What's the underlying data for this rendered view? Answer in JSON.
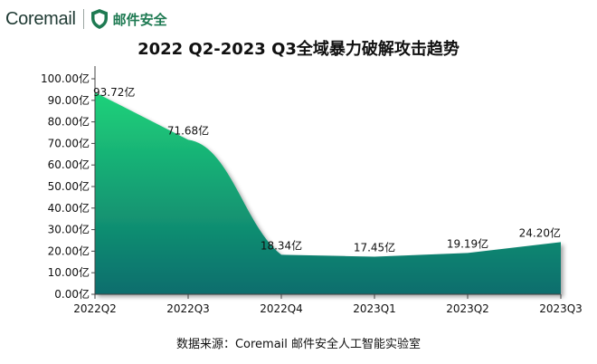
{
  "logo": {
    "brand": "Coremail",
    "product": "邮件安全",
    "icon": "shield-icon"
  },
  "chart_data": {
    "type": "area",
    "title": "2022 Q2-2023 Q3全域暴力破解攻击趋势",
    "categories": [
      "2022Q2",
      "2022Q3",
      "2022Q4",
      "2023Q1",
      "2023Q2",
      "2023Q3"
    ],
    "series": [
      {
        "values": [
          93.72,
          71.68,
          18.34,
          17.45,
          19.19,
          24.2
        ]
      }
    ],
    "data_labels": [
      "93.72亿",
      "71.68亿",
      "18.34亿",
      "17.45亿",
      "19.19亿",
      "24.20亿"
    ],
    "y_ticks": [
      "0.00亿",
      "10.00亿",
      "20.00亿",
      "30.00亿",
      "40.00亿",
      "50.00亿",
      "60.00亿",
      "70.00亿",
      "80.00亿",
      "90.00亿",
      "100.00亿"
    ],
    "ylim": [
      0,
      100
    ],
    "xlabel": "",
    "ylabel": "",
    "grid": false,
    "legend": "none",
    "colors": {
      "gradient_top": "#1fd27a",
      "gradient_bottom": "#0a6d6d",
      "line": "#0f7a64"
    }
  },
  "footer": {
    "source": "数据来源：Coremail 邮件安全人工智能实验室"
  }
}
